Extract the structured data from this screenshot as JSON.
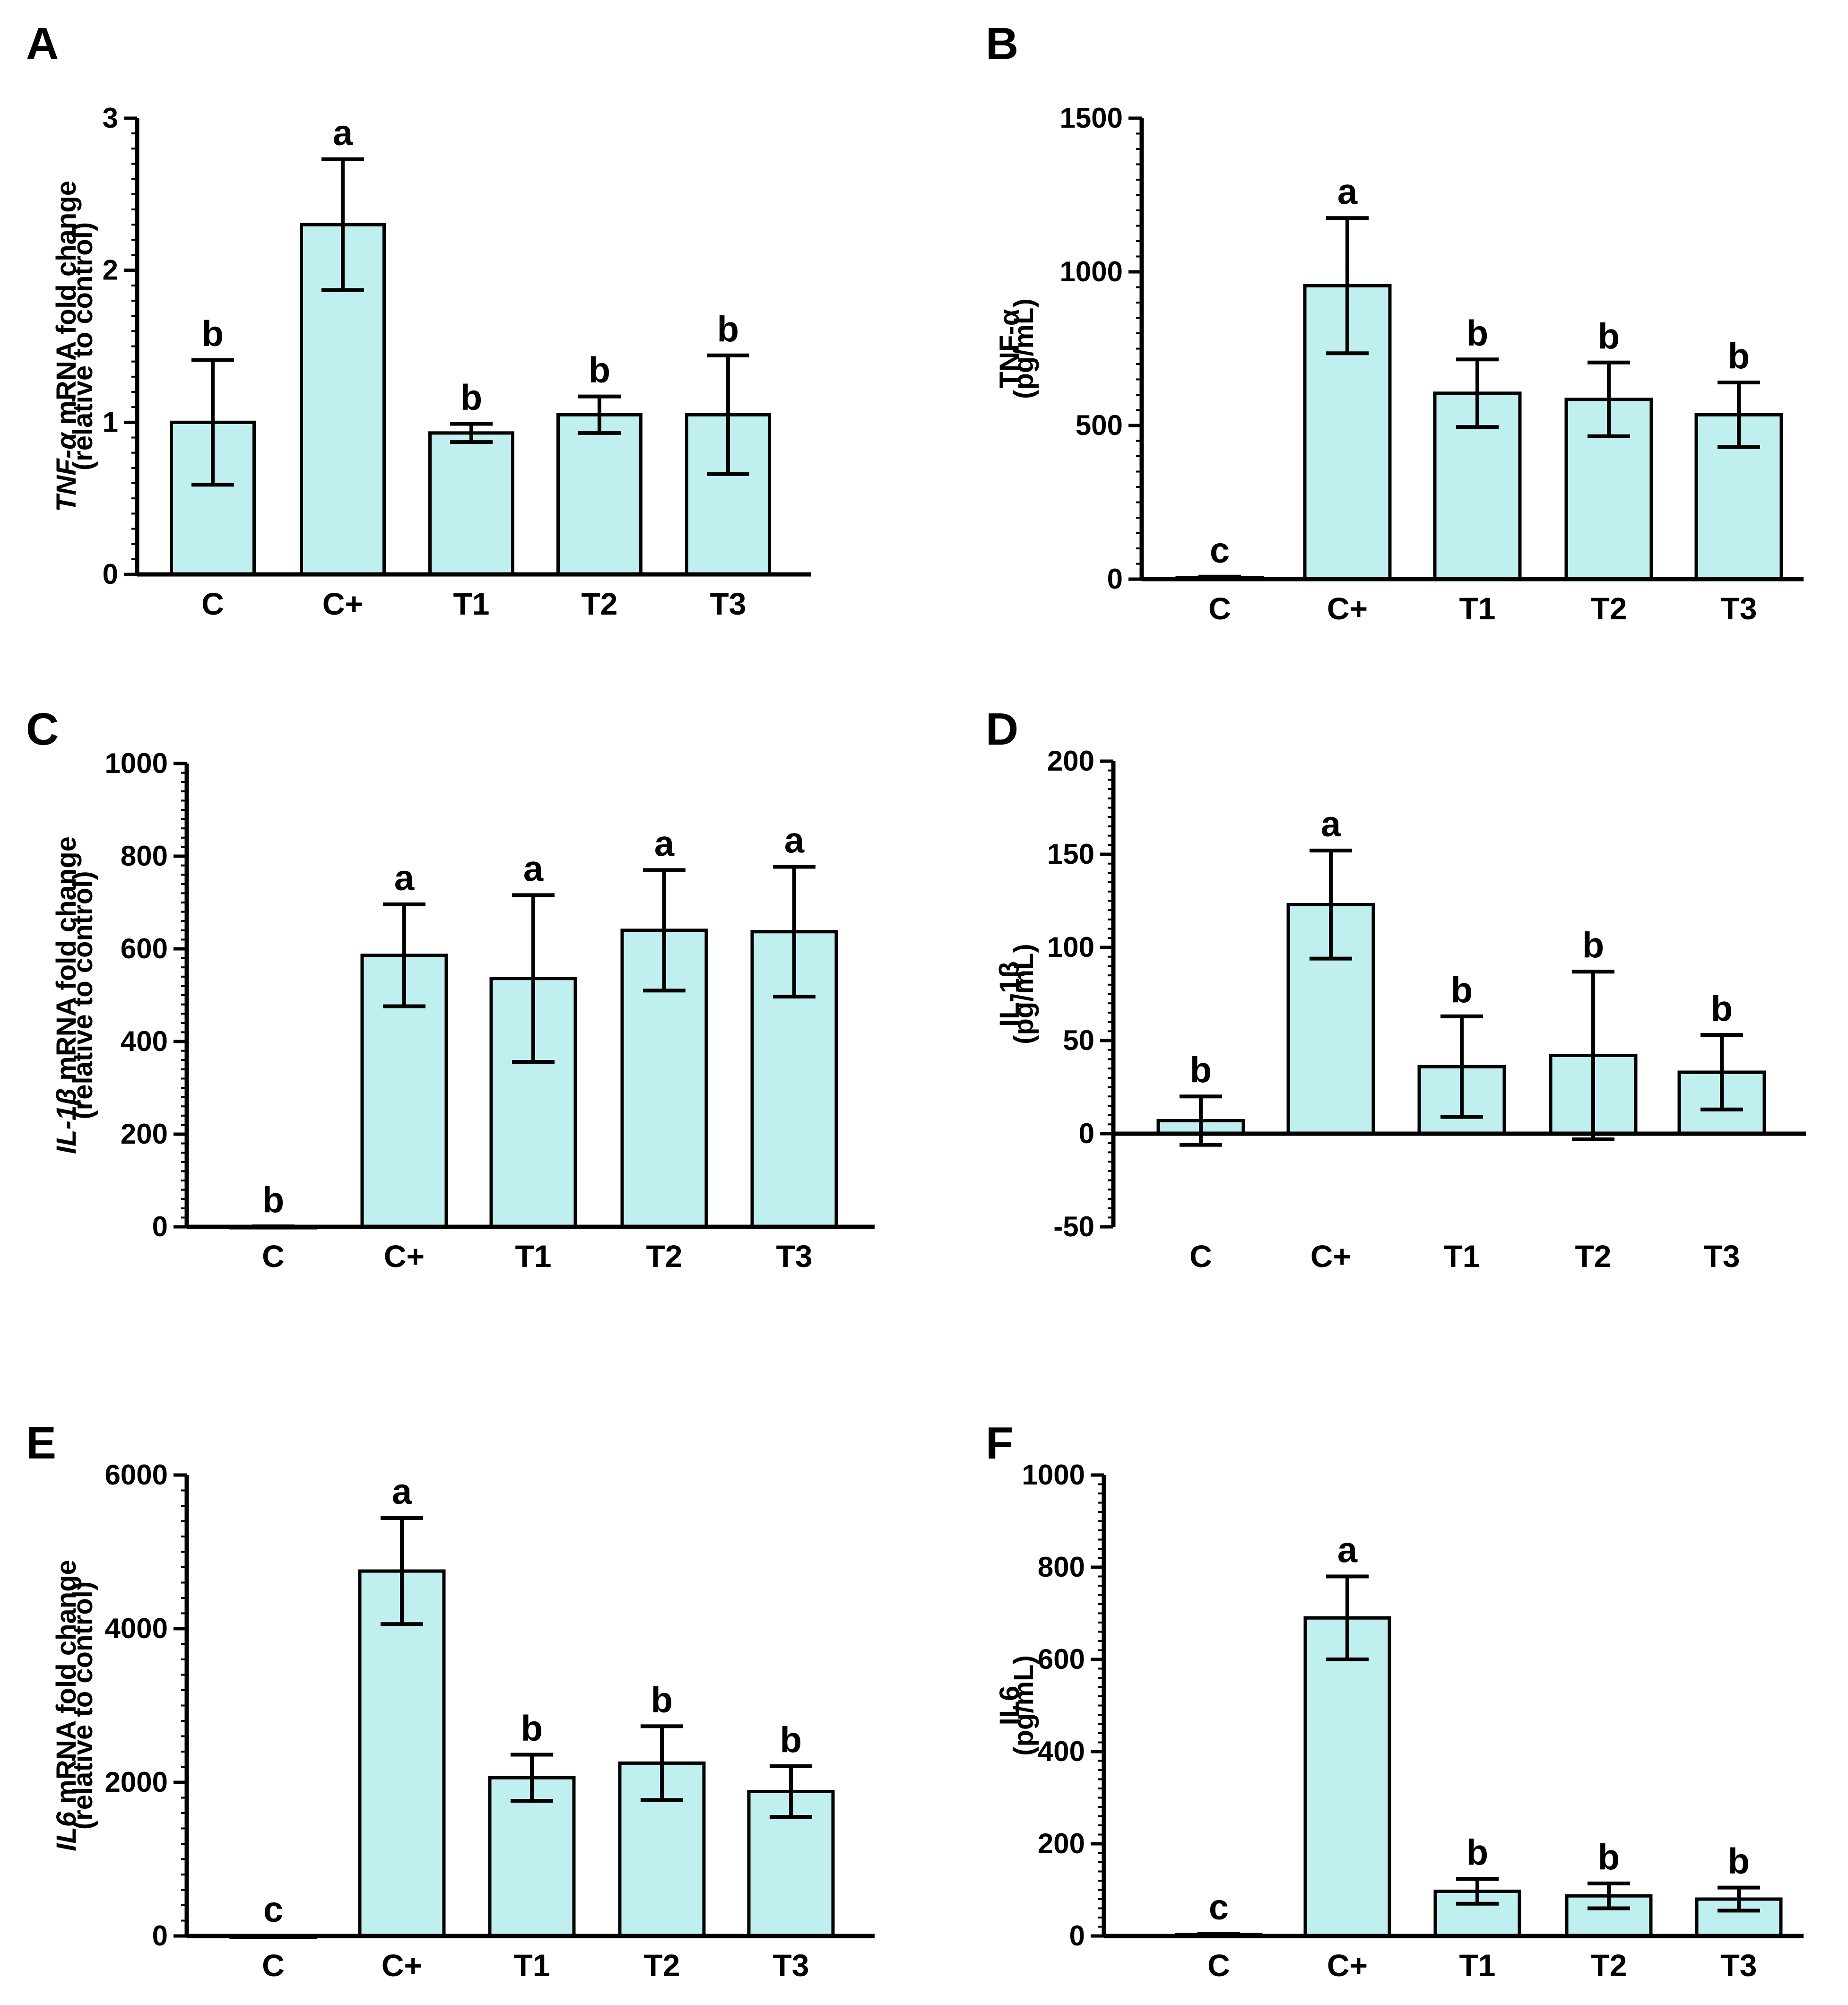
{
  "colors": {
    "bar_fill": "#bff0ef",
    "stroke": "#000000",
    "background": "#ffffff"
  },
  "chart_data": [
    {
      "panel": "A",
      "type": "bar",
      "categories": [
        "C",
        "C+",
        "T1",
        "T2",
        "T3"
      ],
      "values": [
        1.0,
        2.3,
        0.93,
        1.05,
        1.05
      ],
      "errors": [
        0.41,
        0.43,
        0.06,
        0.12,
        0.39
      ],
      "significance": [
        "b",
        "a",
        "b",
        "b",
        "b"
      ],
      "ylabel_line1_italic": "TNF-α",
      "ylabel_line1_rest": " mRNA fold change",
      "ylabel_line2": "(relative to control)",
      "ylim": [
        0,
        3
      ],
      "yticks": [
        0,
        1,
        2,
        3
      ],
      "ytick_labels": [
        "0",
        "1",
        "2",
        "3"
      ]
    },
    {
      "panel": "B",
      "type": "bar",
      "categories": [
        "C",
        "C+",
        "T1",
        "T2",
        "T3"
      ],
      "values": [
        5,
        955,
        605,
        585,
        535
      ],
      "errors": [
        3,
        220,
        110,
        120,
        105
      ],
      "significance": [
        "c",
        "a",
        "b",
        "b",
        "b"
      ],
      "ylabel_line1_italic": "",
      "ylabel_line1_rest": "TNF-α",
      "ylabel_line2": "(pg/mL)",
      "ylim": [
        0,
        1500
      ],
      "yticks": [
        0,
        500,
        1000,
        1500
      ],
      "ytick_labels": [
        "0",
        "500",
        "1000",
        "1500"
      ]
    },
    {
      "panel": "C",
      "type": "bar",
      "categories": [
        "C",
        "C+",
        "T1",
        "T2",
        "T3"
      ],
      "values": [
        1,
        586,
        536,
        640,
        637
      ],
      "errors": [
        0,
        110,
        180,
        130,
        140
      ],
      "significance": [
        "b",
        "a",
        "a",
        "a",
        "a"
      ],
      "ylabel_line1_italic": "IL-1β",
      "ylabel_line1_rest": " mRNA fold change",
      "ylabel_line2": "(relative to control)",
      "ylim": [
        0,
        1000
      ],
      "yticks": [
        0,
        200,
        400,
        600,
        800,
        1000
      ],
      "ytick_labels": [
        "0",
        "200",
        "400",
        "600",
        "800",
        "1000"
      ]
    },
    {
      "panel": "D",
      "type": "bar",
      "categories": [
        "C",
        "C+",
        "T1",
        "T2",
        "T3"
      ],
      "values": [
        7,
        123,
        36,
        42,
        33
      ],
      "errors": [
        13,
        29,
        27,
        45,
        20
      ],
      "significance": [
        "b",
        "a",
        "b",
        "b",
        "b"
      ],
      "ylabel_line1_italic": "",
      "ylabel_line1_rest": "IL-1β",
      "ylabel_line2": "(pg/mL)",
      "ylim": [
        -50,
        200
      ],
      "yticks": [
        -50,
        0,
        50,
        100,
        150,
        200
      ],
      "ytick_labels": [
        "-50",
        "0",
        "50",
        "100",
        "150",
        "200"
      ]
    },
    {
      "panel": "E",
      "type": "bar",
      "categories": [
        "C",
        "C+",
        "T1",
        "T2",
        "T3"
      ],
      "values": [
        1,
        4750,
        2060,
        2250,
        1880
      ],
      "errors": [
        0,
        690,
        300,
        480,
        330
      ],
      "significance": [
        "c",
        "a",
        "b",
        "b",
        "b"
      ],
      "ylabel_line1_italic": "IL6",
      "ylabel_line1_rest": " mRNA fold change",
      "ylabel_line2": "(relative to control)",
      "ylim": [
        0,
        6000
      ],
      "yticks": [
        0,
        2000,
        4000,
        6000
      ],
      "ytick_labels": [
        "0",
        "2000",
        "4000",
        "6000"
      ]
    },
    {
      "panel": "F",
      "type": "bar",
      "categories": [
        "C",
        "C+",
        "T1",
        "T2",
        "T3"
      ],
      "values": [
        3,
        690,
        97,
        87,
        80
      ],
      "errors": [
        2,
        90,
        27,
        27,
        25
      ],
      "significance": [
        "c",
        "a",
        "b",
        "b",
        "b"
      ],
      "ylabel_line1_italic": "",
      "ylabel_line1_rest": "IL6",
      "ylabel_line2": "(pg/mL)",
      "ylim": [
        0,
        1000
      ],
      "yticks": [
        0,
        200,
        400,
        600,
        800,
        1000
      ],
      "ytick_labels": [
        "0",
        "200",
        "400",
        "600",
        "800",
        "1000"
      ]
    }
  ]
}
